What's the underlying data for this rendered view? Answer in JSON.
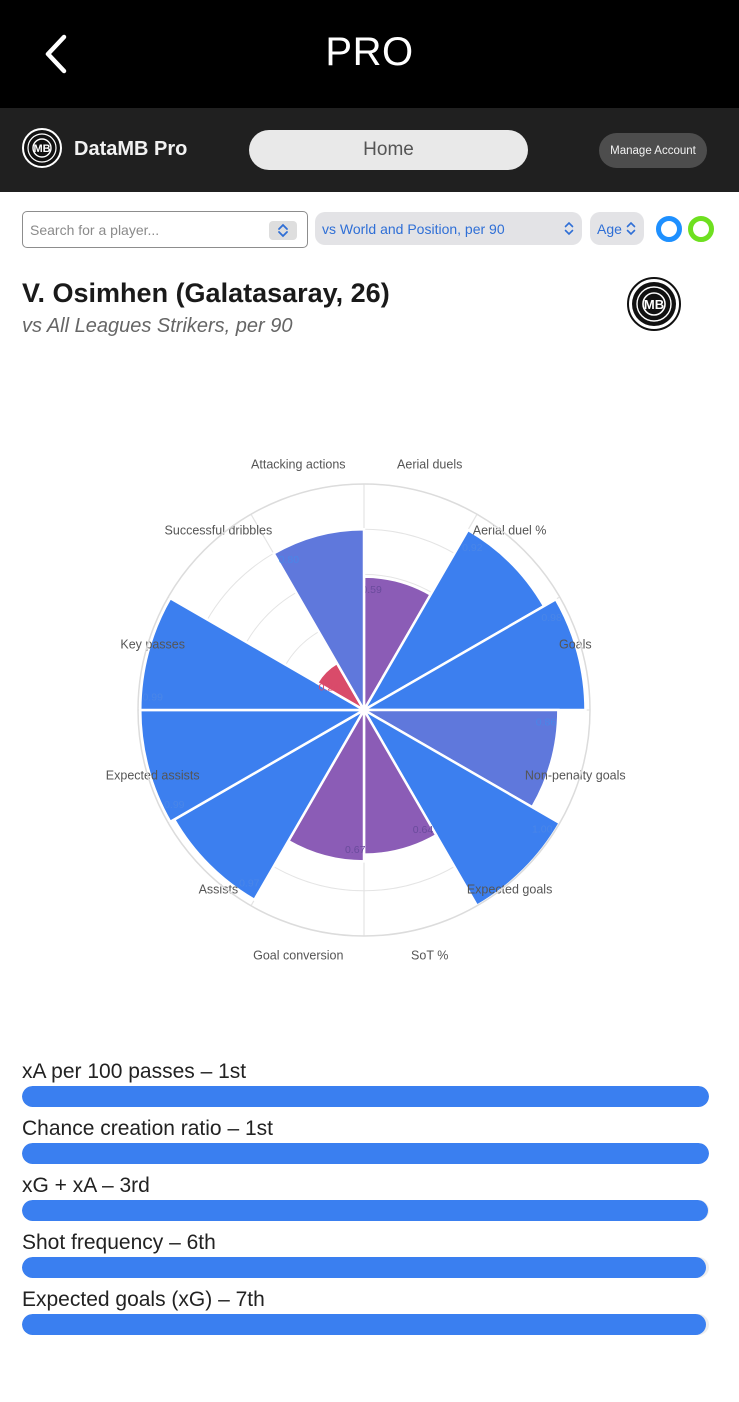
{
  "topbar": {
    "title": "PRO",
    "back_icon": "chevron-left-icon"
  },
  "appbar": {
    "brand_name": "DataMB Pro",
    "logo_text": "MB",
    "home_label": "Home",
    "manage_label": "Manage Account"
  },
  "controls": {
    "search_placeholder": "Search for a player...",
    "search_value": "",
    "compare_selected": "vs World and Position, per 90",
    "age_selected": "Age",
    "toggle_colors": [
      "#1e90ff",
      "#6ee020"
    ]
  },
  "player": {
    "title": "V. Osimhen (Galatasaray, 26)",
    "subtitle": "vs All Leagues Strikers, per 90",
    "badge_text": "MB"
  },
  "chart_data": {
    "type": "polar-area",
    "max": 1.0,
    "rings": 5,
    "segments": [
      {
        "label": "Aerial duels",
        "value": 0.59,
        "display": "0.59",
        "color": "#8b5cb6"
      },
      {
        "label": "Aerial duel %",
        "value": 0.92,
        "display": "0.92",
        "color": "#3c7fef"
      },
      {
        "label": "Goals",
        "value": 0.98,
        "display": "0.98",
        "color": "#3c7fef"
      },
      {
        "label": "Non-penalty goals",
        "value": 0.86,
        "display": "0.86",
        "color": "#5f78dc"
      },
      {
        "label": "Expected goals",
        "value": 1.0,
        "display": "1.00",
        "color": "#3c7fef"
      },
      {
        "label": "SoT %",
        "value": 0.64,
        "display": "0.64",
        "color": "#8b5cb6"
      },
      {
        "label": "Goal conversion",
        "value": 0.67,
        "display": "0.67",
        "color": "#8b5cb6"
      },
      {
        "label": "Assists",
        "value": 0.97,
        "display": "0.97",
        "color": "#3c7fef"
      },
      {
        "label": "Expected assists",
        "value": 0.99,
        "display": "0.99",
        "color": "#3c7fef"
      },
      {
        "label": "Key passes",
        "value": 0.99,
        "display": "0.99",
        "color": "#3c7fef"
      },
      {
        "label": "Successful dribbles",
        "value": 0.24,
        "display": "0.24",
        "color": "#d94b6a"
      },
      {
        "label": "Attacking actions",
        "value": 0.8,
        "display": "0.80",
        "color": "#5f78dc"
      }
    ]
  },
  "rankings": [
    {
      "label": "xA per 100 passes – 1st",
      "value": 1.0
    },
    {
      "label": "Chance creation ratio – 1st",
      "value": 1.0
    },
    {
      "label": "xG + xA – 3rd",
      "value": 0.998
    },
    {
      "label": "Shot frequency – 6th",
      "value": 0.996
    },
    {
      "label": "Expected goals (xG) – 7th",
      "value": 0.995
    }
  ]
}
